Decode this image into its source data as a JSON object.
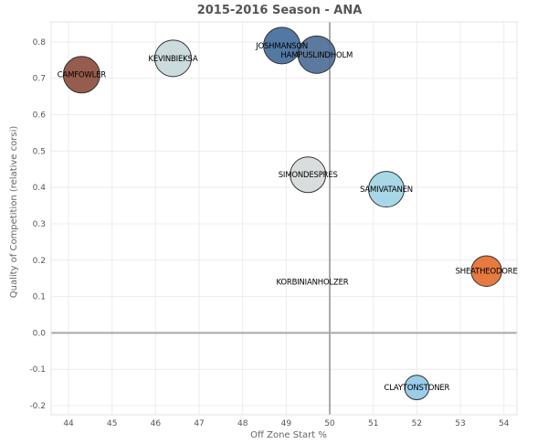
{
  "chart_data": {
    "type": "scatter",
    "title": "2015-2016 Season - ANA",
    "xlabel": "Off Zone Start %",
    "ylabel": "Quality of Competition (relative corsi)",
    "xlim": [
      43.6,
      54.3
    ],
    "ylim": [
      -0.225,
      0.855
    ],
    "x_ticks": [
      44,
      45,
      46,
      47,
      48,
      49,
      50,
      51,
      52,
      53,
      54
    ],
    "y_ticks": [
      -0.2,
      -0.1,
      0.0,
      0.1,
      0.2,
      0.3,
      0.4,
      0.5,
      0.6,
      0.7,
      0.8
    ],
    "y_tick_labels": [
      "-0.2",
      "-0.1",
      "0.0",
      "0.1",
      "0.2",
      "0.3",
      "0.4",
      "0.5",
      "0.6",
      "0.7",
      "0.8"
    ],
    "grid": true,
    "reference_lines": {
      "x": 50,
      "y": 0
    },
    "points": [
      {
        "label": "CAMFOWLER",
        "x": 44.3,
        "y": 0.71,
        "size": 1.0,
        "color": "#8b4a3a"
      },
      {
        "label": "KEVINBIEKSA",
        "x": 46.4,
        "y": 0.755,
        "size": 1.0,
        "color": "#c7d7da"
      },
      {
        "label": "JOSHMANSON",
        "x": 48.9,
        "y": 0.79,
        "size": 1.0,
        "color": "#3f6a9a"
      },
      {
        "label": "HAMPUSLINDHOLM",
        "x": 49.7,
        "y": 0.765,
        "size": 1.05,
        "color": "#4a6a94"
      },
      {
        "label": "SIMONDESPRES",
        "x": 49.5,
        "y": 0.435,
        "size": 0.95,
        "color": "#d6d9d9"
      },
      {
        "label": "SAMIVATANEN",
        "x": 51.3,
        "y": 0.395,
        "size": 0.95,
        "color": "#9ed3e6"
      },
      {
        "label": "SHEATHEODORE",
        "x": 53.6,
        "y": 0.17,
        "size": 0.7,
        "color": "#e36b2c"
      },
      {
        "label": "KORBINIANHOLZER",
        "x": 49.6,
        "y": 0.14,
        "size": 0.0,
        "color": "#cccccc"
      },
      {
        "label": "CLAYTONSTONER",
        "x": 52.0,
        "y": -0.15,
        "size": 0.45,
        "color": "#8ec8e8"
      }
    ]
  }
}
